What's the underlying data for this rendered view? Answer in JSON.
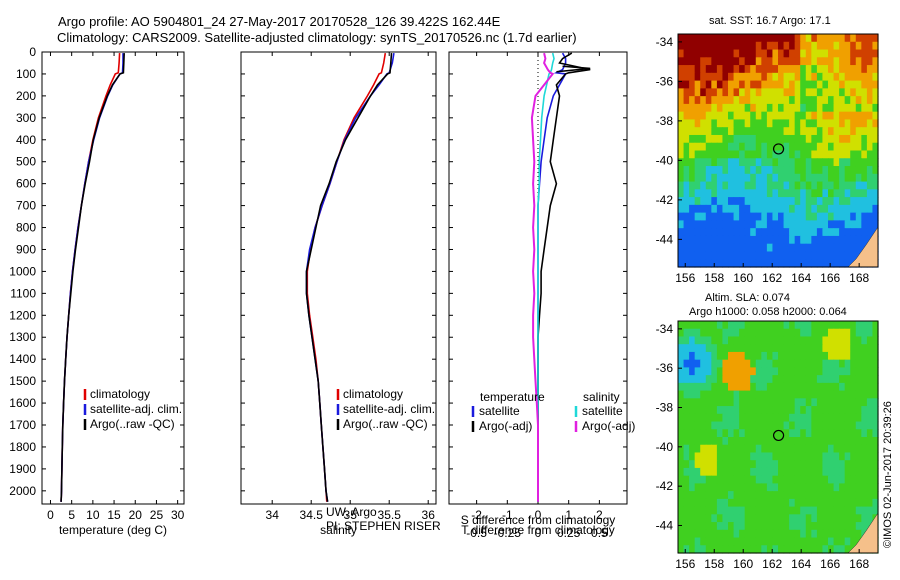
{
  "header": {
    "line1": "Argo profile: AO 5904801_24 27-May-2017 20170528_126 39.422S 162.44E",
    "line2": "Climatology: CARS2009. Satellite-adjusted climatology: synTS_20170526.nc (1.7d earlier)"
  },
  "colors": {
    "clim": "#e00000",
    "sat": "#1a1add",
    "argo": "#000000",
    "sat_s": "#1fd8d8",
    "argo_s": "#e020e0",
    "land": "#f5c08a"
  },
  "chart_data": [
    {
      "type": "line",
      "name": "temperature",
      "xlabel": "temperature (deg C)",
      "xlim": [
        -2,
        31.5
      ],
      "ylim": [
        0,
        2060
      ],
      "xticks": [
        "0",
        "5",
        "10",
        "15",
        "20",
        "25",
        "30"
      ],
      "yticks": [
        "0",
        "100",
        "200",
        "300",
        "400",
        "500",
        "600",
        "700",
        "800",
        "900",
        "1000",
        "1100",
        "1200",
        "1300",
        "1400",
        "1500",
        "1600",
        "1700",
        "1800",
        "1900",
        "2000"
      ],
      "depth": [
        5,
        50,
        95,
        100,
        150,
        200,
        300,
        400,
        500,
        600,
        700,
        800,
        900,
        1000,
        1100,
        1200,
        1300,
        1400,
        1500,
        1600,
        1700,
        1800,
        1900,
        2000,
        2050
      ],
      "series": [
        {
          "name": "climatology",
          "values": [
            16.3,
            16.2,
            16.0,
            15.3,
            14.1,
            13.1,
            11.3,
            10.0,
            9.0,
            8.1,
            7.3,
            6.5,
            5.8,
            5.2,
            4.7,
            4.3,
            3.9,
            3.6,
            3.3,
            3.1,
            2.9,
            2.8,
            2.7,
            2.6,
            2.5
          ]
        },
        {
          "name": "satellite-adj. clim.",
          "values": [
            17.1,
            17.1,
            17.0,
            16.4,
            14.7,
            13.5,
            11.6,
            10.2,
            9.0,
            8.1,
            7.3,
            6.5,
            5.8,
            5.2,
            4.7,
            4.3,
            3.9,
            3.6,
            3.3,
            3.1,
            2.9,
            2.8,
            2.7,
            2.6,
            2.5
          ]
        },
        {
          "name": "Argo(..raw -QC)",
          "values": [
            17.4,
            17.3,
            17.2,
            16.4,
            14.6,
            13.4,
            11.5,
            10.1,
            9.2,
            8.2,
            7.3,
            6.6,
            5.9,
            5.3,
            4.8,
            4.3,
            3.9,
            3.6,
            3.3,
            3.1,
            2.9,
            2.8,
            2.7,
            2.6,
            2.5
          ]
        }
      ],
      "legend": [
        "climatology",
        "satellite-adj. clim.",
        "Argo(..raw -QC)"
      ]
    },
    {
      "type": "line",
      "name": "salinity",
      "xlabel": "salinity",
      "xlim": [
        33.6,
        36.1
      ],
      "ylim": [
        0,
        2060
      ],
      "xticks": [
        "34",
        "34.5",
        "35",
        "35.5",
        "36"
      ],
      "depth": [
        5,
        50,
        95,
        100,
        150,
        200,
        300,
        400,
        500,
        600,
        700,
        800,
        900,
        1000,
        1100,
        1200,
        1300,
        1400,
        1500,
        1600,
        1700,
        1800,
        1900,
        2000,
        2050
      ],
      "series": [
        {
          "name": "climatology",
          "values": [
            35.45,
            35.43,
            35.4,
            35.37,
            35.3,
            35.22,
            35.05,
            34.92,
            34.83,
            34.74,
            34.64,
            34.55,
            34.49,
            34.45,
            34.45,
            34.48,
            34.52,
            34.56,
            34.59,
            34.61,
            34.63,
            34.65,
            34.67,
            34.69,
            34.7
          ]
        },
        {
          "name": "satellite-adj. clim.",
          "values": [
            35.56,
            35.54,
            35.5,
            35.47,
            35.37,
            35.26,
            35.07,
            34.93,
            34.83,
            34.74,
            34.64,
            34.55,
            34.48,
            34.44,
            34.44,
            34.47,
            34.51,
            34.55,
            34.59,
            34.61,
            34.63,
            34.65,
            34.67,
            34.69,
            34.71
          ]
        },
        {
          "name": "Argo(..raw -QC)",
          "values": [
            35.53,
            35.52,
            35.51,
            35.48,
            35.35,
            35.26,
            35.1,
            34.94,
            34.82,
            34.73,
            34.62,
            34.56,
            34.5,
            34.44,
            34.44,
            34.47,
            34.51,
            34.55,
            34.59,
            34.61,
            34.63,
            34.65,
            34.67,
            34.69,
            34.71
          ]
        }
      ],
      "legend": [
        "climatology",
        "satellite-adj. clim.",
        "Argo(..raw -QC)"
      ],
      "annotation": [
        "UW, Argo",
        "PI: STEPHEN RISER"
      ]
    },
    {
      "type": "line",
      "name": "difference",
      "xlabel": "T difference from climatology",
      "xlabel_top": "S difference from climatology",
      "xlim": [
        -2.9,
        2.9
      ],
      "ylim": [
        0,
        2060
      ],
      "xticks": [
        "-2",
        "-1",
        "0",
        "1",
        "2"
      ],
      "sticks": [
        "-0.5",
        "-0.25",
        "0",
        "0.25",
        "0.5"
      ],
      "legend_temp_title": "temperature",
      "legend_sal_title": "salinity",
      "legend_temp": [
        "satellite",
        "Argo(-adj)"
      ],
      "legend_sal": [
        "satellite",
        "Argo(-adj)"
      ],
      "depth": [
        5,
        30,
        50,
        80,
        95,
        100,
        150,
        200,
        300,
        400,
        500,
        600,
        700,
        800,
        900,
        1000,
        1100,
        1200,
        1300,
        1400,
        1500,
        1600,
        1700,
        1800,
        1900,
        2000,
        2050
      ],
      "series": [
        {
          "name": "T satellite",
          "values": [
            0.8,
            0.9,
            0.9,
            0.8,
            0.6,
            0.9,
            0.7,
            0.5,
            0.3,
            0.2,
            0.1,
            0.05,
            0.0,
            0.0,
            0.0,
            0.0,
            0.0,
            0.0,
            0.0,
            0.0,
            0.0,
            0.0,
            0.0,
            0.0,
            0.0,
            0.0,
            0.0
          ]
        },
        {
          "name": "T Argo(-adj)",
          "values": [
            1.1,
            0.8,
            0.7,
            1.7,
            1.0,
            0.9,
            0.6,
            0.7,
            0.6,
            0.5,
            0.4,
            0.6,
            0.4,
            0.3,
            0.2,
            0.1,
            0.1,
            0.05,
            0.0,
            0.0,
            0.0,
            0.0,
            0.0,
            0.0,
            0.0,
            0.0,
            0.0
          ]
        },
        {
          "name": "S satellite",
          "values": [
            0.12,
            0.13,
            0.12,
            0.11,
            0.1,
            0.09,
            0.07,
            0.05,
            0.03,
            0.02,
            0.01,
            0.01,
            0.0,
            0.0,
            0.0,
            0.0,
            0.0,
            0.0,
            0.0,
            0.0,
            0.0,
            0.0,
            0.0,
            0.0,
            0.0,
            0.0,
            0.0
          ]
        },
        {
          "name": "S Argo(-adj)",
          "values": [
            0.05,
            0.06,
            0.05,
            0.08,
            0.1,
            0.12,
            0.05,
            -0.02,
            -0.05,
            -0.04,
            -0.03,
            -0.04,
            -0.03,
            -0.04,
            -0.03,
            -0.04,
            -0.03,
            -0.04,
            -0.04,
            -0.03,
            -0.02,
            -0.01,
            0.0,
            0.0,
            0.0,
            0.0,
            0.0
          ]
        }
      ]
    },
    {
      "type": "heatmap",
      "name": "sst_map",
      "title": "sat. SST: 16.7 Argo: 17.1",
      "xlim": [
        155.5,
        169.3
      ],
      "ylim": [
        -45.4,
        -33.6
      ],
      "xticks": [
        "156",
        "158",
        "160",
        "162",
        "164",
        "166",
        "168"
      ],
      "yticks": [
        "-34",
        "-36",
        "-38",
        "-40",
        "-42",
        "-44"
      ],
      "marker": {
        "lon": 162.44,
        "lat": -39.42
      }
    },
    {
      "type": "heatmap",
      "name": "sla_map",
      "title_line1": "Altim. SLA: 0.074",
      "title_line2": "Argo h1000: 0.058 h2000: 0.064",
      "xlim": [
        155.5,
        169.3
      ],
      "ylim": [
        -45.4,
        -33.6
      ],
      "xticks": [
        "156",
        "158",
        "160",
        "162",
        "164",
        "166",
        "168"
      ],
      "yticks": [
        "-34",
        "-36",
        "-38",
        "-40",
        "-42",
        "-44"
      ],
      "marker": {
        "lon": 162.44,
        "lat": -39.42
      }
    }
  ],
  "credit": "©IMOS 02-Jun-2017 20:39:26"
}
